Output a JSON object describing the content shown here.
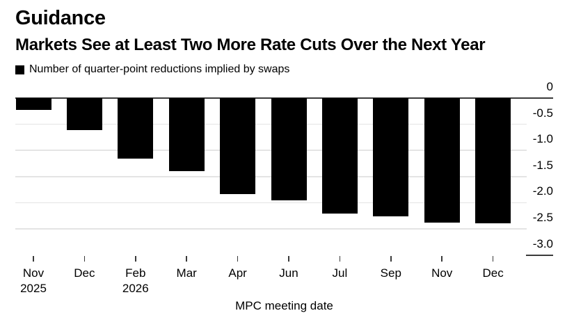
{
  "header": {
    "kicker": "Guidance",
    "title": "Markets See at Least Two More Rate Cuts Over the Next Year",
    "legend_label": "Number of quarter-point reductions implied by swaps"
  },
  "chart_data": {
    "type": "bar",
    "title": "Guidance",
    "subtitle": "Markets See at Least Two More Rate Cuts Over the Next Year",
    "legend": [
      "Number of quarter-point reductions implied by swaps"
    ],
    "legend_position": "top-left",
    "categories": [
      "Nov",
      "Dec",
      "Feb",
      "Mar",
      "Apr",
      "Jun",
      "Jul",
      "Sep",
      "Nov",
      "Dec"
    ],
    "year_labels": [
      {
        "index": 0,
        "label": "2025"
      },
      {
        "index": 2,
        "label": "2026"
      }
    ],
    "values": [
      -0.22,
      -0.61,
      -1.16,
      -1.4,
      -1.83,
      -1.95,
      -2.21,
      -2.26,
      -2.38,
      -2.39
    ],
    "xlabel": "MPC meeting date",
    "ylabel": "",
    "ylim": [
      -3.0,
      0
    ],
    "yticks": [
      0,
      -0.5,
      -1.0,
      -1.5,
      -2.0,
      -2.5,
      -3.0
    ],
    "ytick_labels": [
      "0",
      "-0.5",
      "-1.0",
      "-1.5",
      "-2.0",
      "-2.5",
      "-3.0"
    ],
    "grid": true,
    "axis_side": "right",
    "bar_color": "#000000",
    "grid_color": "#e4e4e4",
    "zero_line_color": "#3a3a3a",
    "background_color": "#ffffff",
    "text_color": "#000000"
  }
}
